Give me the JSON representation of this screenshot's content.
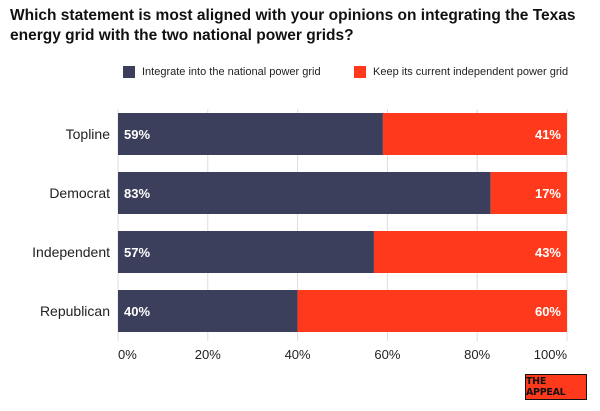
{
  "chart_data": {
    "type": "bar",
    "orientation": "horizontal",
    "stacked": true,
    "title": "Which statement is most aligned with your opinions on integrating the Texas energy grid with the two national power grids?",
    "categories": [
      "Topline",
      "Democrat",
      "Independent",
      "Republican"
    ],
    "series": [
      {
        "name": "Integrate into the national power grid",
        "values": [
          59,
          83,
          57,
          40
        ],
        "labels": [
          "59%",
          "83%",
          "57%",
          "40%"
        ],
        "color": "#3b3f5c"
      },
      {
        "name": "Keep its current independent power grid",
        "values": [
          41,
          17,
          43,
          60
        ],
        "labels": [
          "41%",
          "17%",
          "43%",
          "60%"
        ],
        "color": "#ff3a1c"
      }
    ],
    "xlim": [
      0,
      100
    ],
    "xticks": [
      "0%",
      "20%",
      "40%",
      "60%",
      "80%",
      "100%"
    ],
    "legend_position": "top",
    "grid": true
  },
  "branding": {
    "logo_text": "THE APPEAL"
  }
}
